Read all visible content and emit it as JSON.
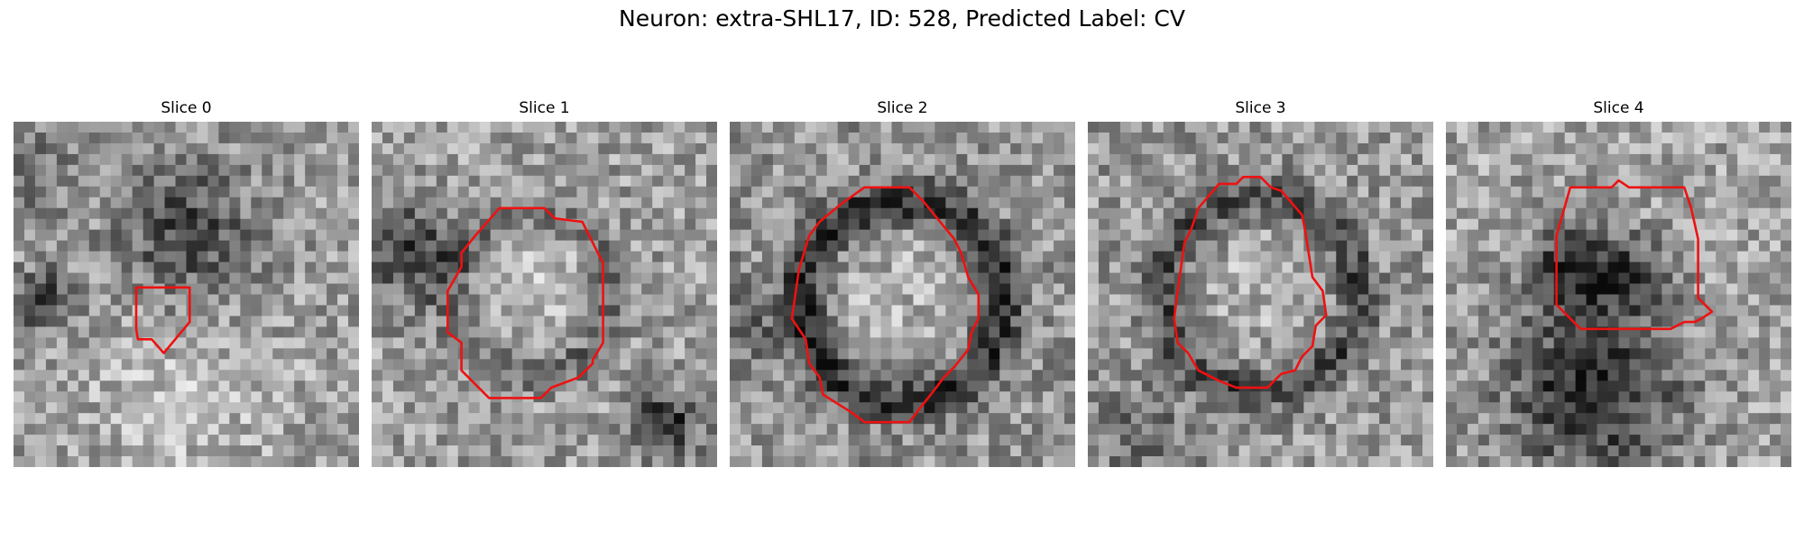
{
  "figure": {
    "title": "Neuron: extra-SHL17, ID: 528, Predicted Label: CV",
    "colormap": "gray",
    "contour_color": "#ee1111",
    "grid": "32x32"
  },
  "panels": [
    {
      "title": "Slice 0"
    },
    {
      "title": "Slice 1"
    },
    {
      "title": "Slice 2"
    },
    {
      "title": "Slice 3"
    },
    {
      "title": "Slice 4"
    }
  ]
}
